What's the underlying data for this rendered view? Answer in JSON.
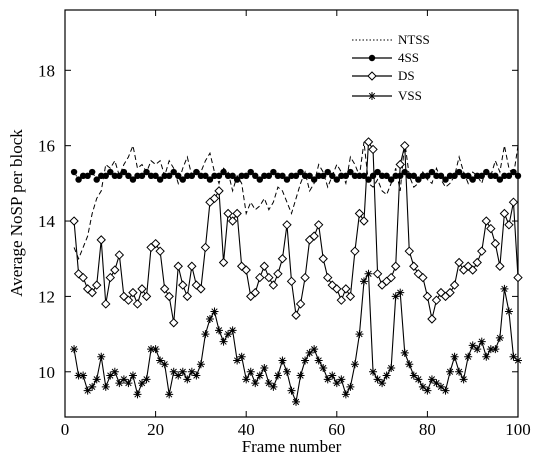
{
  "chart_data": {
    "type": "line",
    "title": "",
    "xlabel": "Frame number",
    "ylabel": "Average NoSP per block",
    "xlim": [
      0,
      100
    ],
    "ylim": [
      8.8,
      19.6
    ],
    "xticks": [
      0,
      20,
      40,
      60,
      80,
      100
    ],
    "yticks": [
      10,
      12,
      14,
      16,
      18
    ],
    "grid": false,
    "legend_position": "top-right",
    "x": [
      2,
      3,
      4,
      5,
      6,
      7,
      8,
      9,
      10,
      11,
      12,
      13,
      14,
      15,
      16,
      17,
      18,
      19,
      20,
      21,
      22,
      23,
      24,
      25,
      26,
      27,
      28,
      29,
      30,
      31,
      32,
      33,
      34,
      35,
      36,
      37,
      38,
      39,
      40,
      41,
      42,
      43,
      44,
      45,
      46,
      47,
      48,
      49,
      50,
      51,
      52,
      53,
      54,
      55,
      56,
      57,
      58,
      59,
      60,
      61,
      62,
      63,
      64,
      65,
      66,
      67,
      68,
      69,
      70,
      71,
      72,
      73,
      74,
      75,
      76,
      77,
      78,
      79,
      80,
      81,
      82,
      83,
      84,
      85,
      86,
      87,
      88,
      89,
      90,
      91,
      92,
      93,
      94,
      95,
      96,
      97,
      98,
      99,
      100
    ],
    "series": [
      {
        "name": "NTSS",
        "style": "dotted",
        "values": [
          15.3,
          15.1,
          15.2,
          15.2,
          15.3,
          15.1,
          15.2,
          15.2,
          15.3,
          15.2,
          15.2,
          15.3,
          15.2,
          15.1,
          15.2,
          15.2,
          15.3,
          15.2,
          15.2,
          15.1,
          15.2,
          15.2,
          15.3,
          15.2,
          15.1,
          15.2,
          15.2,
          15.3,
          15.2,
          15.2,
          15.1,
          15.2,
          15.2,
          15.3,
          15.2,
          15.2,
          15.1,
          15.2,
          15.2,
          15.3,
          15.2,
          15.1,
          15.2,
          15.2,
          15.3,
          15.2,
          15.2,
          15.1,
          15.2,
          15.2,
          15.3,
          15.2,
          15.2,
          15.1,
          15.2,
          15.2,
          15.3,
          15.2,
          15.1,
          15.2,
          15.2,
          15.3,
          15.2,
          15.2,
          15.2,
          15.1,
          15.2,
          15.3,
          15.2,
          15.2,
          15.1,
          15.2,
          15.2,
          15.3,
          15.2,
          15.2,
          15.1,
          15.2,
          15.2,
          15.3,
          15.2,
          15.2,
          15.1,
          15.2,
          15.2,
          15.3,
          15.2,
          15.2,
          15.1,
          15.2,
          15.2,
          15.3,
          15.2,
          15.2,
          15.1,
          15.2,
          15.2,
          15.3,
          15.2
        ]
      },
      {
        "name": "4SS",
        "style": "dashed",
        "values": [
          13.3,
          13.0,
          13.3,
          13.6,
          14.2,
          14.6,
          14.8,
          15.5,
          15.4,
          15.6,
          15.2,
          15.5,
          15.7,
          16.0,
          15.4,
          15.5,
          15.3,
          15.6,
          15.5,
          15.6,
          15.2,
          15.6,
          15.4,
          15.0,
          15.4,
          15.7,
          15.2,
          15.3,
          15.3,
          15.6,
          15.8,
          15.3,
          15.0,
          15.4,
          15.3,
          14.8,
          15.2,
          15.0,
          14.2,
          14.5,
          14.3,
          14.4,
          14.6,
          14.3,
          14.5,
          14.9,
          14.8,
          14.5,
          14.2,
          14.6,
          15.0,
          15.3,
          14.8,
          15.0,
          15.5,
          15.3,
          14.9,
          15.2,
          15.5,
          15.3,
          15.0,
          15.7,
          15.5,
          15.2,
          16.1,
          15.0,
          14.9,
          15.1,
          14.8,
          14.7,
          15.0,
          15.4,
          14.8,
          16.1,
          15.2,
          14.9,
          15.0,
          15.3,
          15.1,
          15.0,
          15.4,
          15.1,
          14.9,
          15.0,
          15.2,
          15.7,
          15.3,
          15.0,
          15.3,
          15.2,
          15.0,
          15.4,
          15.2,
          15.6,
          15.3,
          16.0,
          15.4,
          15.2,
          16.0
        ]
      },
      {
        "name": "DS",
        "style": "solid-diamond",
        "values": [
          14.0,
          12.6,
          12.5,
          12.2,
          12.1,
          12.3,
          13.5,
          11.8,
          12.5,
          12.7,
          13.1,
          12.0,
          11.9,
          12.1,
          11.8,
          12.2,
          12.0,
          13.3,
          13.4,
          13.2,
          12.2,
          12.0,
          11.3,
          12.8,
          12.3,
          12.0,
          12.8,
          12.3,
          12.2,
          13.3,
          14.5,
          14.6,
          14.8,
          12.9,
          14.2,
          14.0,
          14.2,
          12.8,
          12.7,
          12.0,
          12.1,
          12.5,
          12.8,
          12.5,
          12.3,
          12.6,
          13.0,
          13.9,
          12.4,
          11.5,
          11.8,
          12.5,
          13.5,
          13.6,
          13.9,
          13.0,
          12.5,
          12.3,
          12.2,
          11.9,
          12.2,
          12.0,
          13.2,
          14.2,
          14.0,
          16.1,
          15.9,
          12.6,
          12.3,
          12.4,
          12.5,
          12.8,
          15.5,
          16.0,
          13.2,
          12.8,
          12.6,
          12.5,
          12.0,
          11.4,
          11.9,
          12.1,
          12.0,
          12.1,
          12.3,
          12.9,
          12.7,
          12.8,
          12.7,
          12.9,
          13.2,
          14.0,
          13.8,
          13.4,
          12.8,
          14.2,
          13.9,
          14.5,
          12.5
        ]
      },
      {
        "name": "VSS",
        "style": "solid-star",
        "values": [
          10.6,
          9.9,
          9.9,
          9.5,
          9.6,
          9.8,
          10.4,
          9.6,
          9.9,
          10.0,
          9.7,
          9.8,
          9.7,
          9.9,
          9.4,
          9.7,
          9.8,
          10.6,
          10.6,
          10.3,
          10.2,
          9.4,
          10.0,
          9.9,
          10.0,
          9.8,
          10.0,
          9.9,
          10.2,
          11.0,
          11.4,
          11.6,
          11.1,
          10.8,
          11.0,
          11.1,
          10.3,
          10.4,
          9.8,
          10.0,
          9.7,
          9.9,
          10.1,
          9.7,
          9.6,
          9.9,
          10.3,
          10.0,
          9.5,
          9.2,
          9.9,
          10.3,
          10.5,
          10.6,
          10.3,
          10.1,
          9.8,
          9.9,
          9.7,
          9.8,
          9.4,
          9.6,
          10.2,
          11.0,
          12.4,
          12.6,
          10.0,
          9.8,
          9.7,
          9.9,
          10.1,
          12.0,
          12.1,
          10.5,
          10.2,
          9.9,
          9.8,
          9.6,
          9.5,
          9.8,
          9.7,
          9.6,
          9.5,
          10.0,
          10.4,
          10.0,
          9.8,
          10.4,
          10.7,
          10.6,
          10.8,
          10.4,
          10.6,
          10.6,
          10.9,
          12.2,
          11.6,
          10.4,
          10.3
        ]
      }
    ]
  }
}
